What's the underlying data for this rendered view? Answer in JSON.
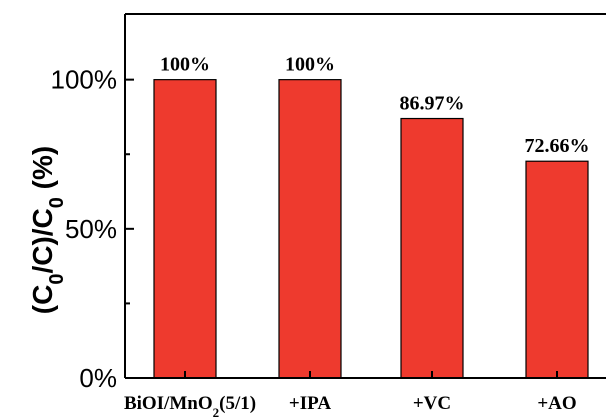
{
  "chart_data": {
    "type": "bar",
    "categories": [
      "BiOI/MnO2(5/1)",
      "+IPA",
      "+VC",
      "+AO"
    ],
    "category_display": [
      {
        "main": "BiOI/MnO",
        "sub": "2",
        "tail": "(5/1)"
      },
      {
        "main": "+IPA",
        "sub": "",
        "tail": ""
      },
      {
        "main": "+VC",
        "sub": "",
        "tail": ""
      },
      {
        "main": "+AO",
        "sub": "",
        "tail": ""
      }
    ],
    "values": [
      100,
      100,
      86.97,
      72.66
    ],
    "data_labels": [
      "100%",
      "100%",
      "86.97%",
      "72.66%"
    ],
    "ylabel": "(C0/C)/C0 (%)",
    "ylabel_parts": {
      "a": "(C",
      "s1": "0",
      "b": "/C)/C",
      "s2": "0",
      "c": " (%)"
    },
    "ylim": [
      0,
      122
    ],
    "yticks": [
      {
        "value": 0,
        "label": "0%"
      },
      {
        "value": 50,
        "label": "50%"
      },
      {
        "value": 100,
        "label": "100%"
      }
    ],
    "grid": false,
    "colors": {
      "bar_fill": "#ee3a2e",
      "bar_edge": "#000000",
      "axis": "#000000"
    }
  }
}
